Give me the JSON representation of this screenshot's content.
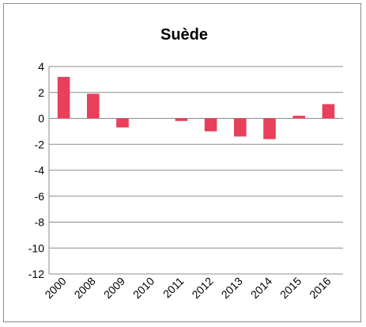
{
  "chart_data": {
    "type": "bar",
    "title": "Suède",
    "xlabel": "",
    "ylabel": "",
    "categories": [
      "2000",
      "2008",
      "2009",
      "2010",
      "2011",
      "2012",
      "2013",
      "2014",
      "2015",
      "2016"
    ],
    "values": [
      3.2,
      1.9,
      -0.7,
      0.0,
      -0.2,
      -1.0,
      -1.4,
      -1.6,
      0.2,
      1.1
    ],
    "ylim": [
      -12,
      4
    ],
    "yticks": [
      4,
      2,
      0,
      -2,
      -4,
      -6,
      -8,
      -10,
      -12
    ],
    "grid": true,
    "legend": "none",
    "colors": {
      "bar": "#e8405a",
      "grid": "#8c8c8c",
      "axis": "#8c8c8c",
      "border": "#8c8c8c"
    }
  }
}
